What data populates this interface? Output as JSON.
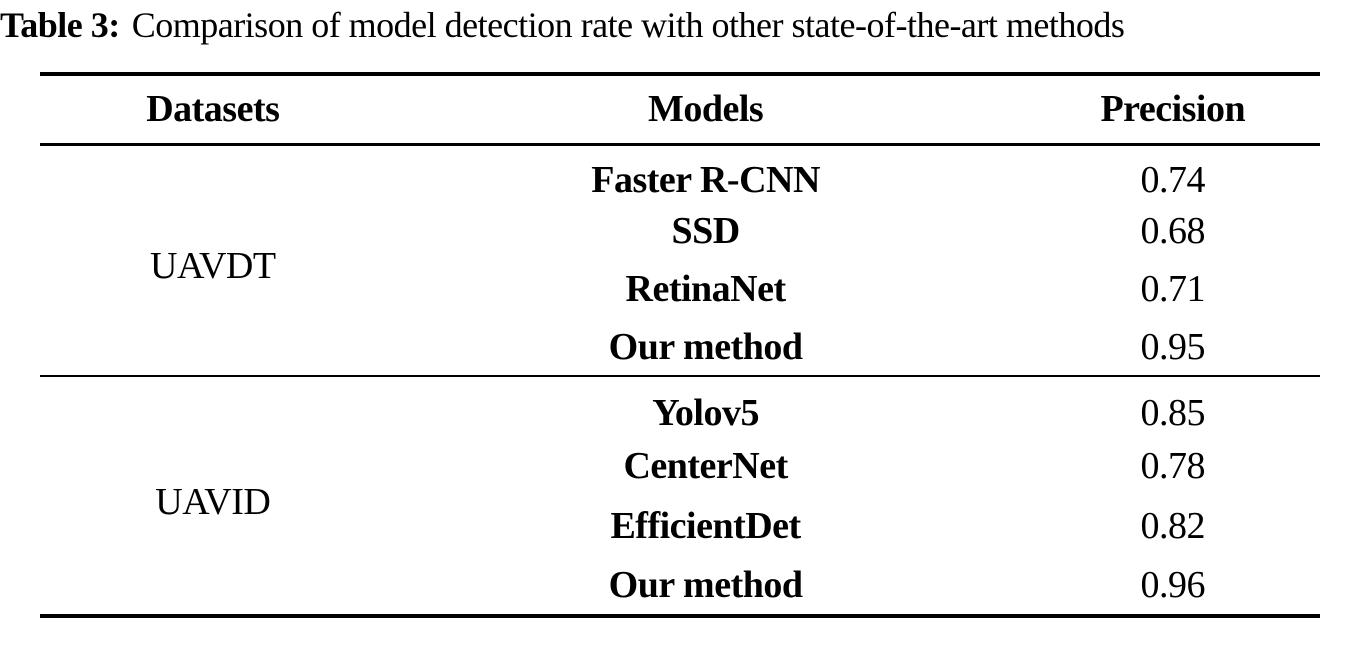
{
  "caption": {
    "label": "Table 3:",
    "text": "Comparison of model detection rate with other state-of-the-art methods"
  },
  "table": {
    "headers": {
      "datasets": "Datasets",
      "models": "Models",
      "precision": "Precision"
    },
    "sections": [
      {
        "dataset": "UAVDT",
        "rows": [
          {
            "model": "Faster R-CNN",
            "precision": "0.74"
          },
          {
            "model": "SSD",
            "precision": "0.68"
          },
          {
            "model": "RetinaNet",
            "precision": "0.71"
          },
          {
            "model": "Our method",
            "precision": "0.95"
          }
        ]
      },
      {
        "dataset": "UAVID",
        "rows": [
          {
            "model": "Yolov5",
            "precision": "0.85"
          },
          {
            "model": "CenterNet",
            "precision": "0.78"
          },
          {
            "model": "EfficientDet",
            "precision": "0.82"
          },
          {
            "model": "Our method",
            "precision": "0.96"
          }
        ]
      }
    ]
  },
  "chart_data": {
    "type": "table",
    "title": "Table 3: Comparison of model detection rate with other state-of-the-art methods",
    "columns": [
      "Datasets",
      "Models",
      "Precision"
    ],
    "rows": [
      [
        "UAVDT",
        "Faster R-CNN",
        0.74
      ],
      [
        "UAVDT",
        "SSD",
        0.68
      ],
      [
        "UAVDT",
        "RetinaNet",
        0.71
      ],
      [
        "UAVDT",
        "Our method",
        0.95
      ],
      [
        "UAVID",
        "Yolov5",
        0.85
      ],
      [
        "UAVID",
        "CenterNet",
        0.78
      ],
      [
        "UAVID",
        "EfficientDet",
        0.82
      ],
      [
        "UAVID",
        "Our method",
        0.96
      ]
    ]
  },
  "colors": {
    "background": "#ffffff",
    "text": "#000000",
    "rule": "#000000"
  }
}
